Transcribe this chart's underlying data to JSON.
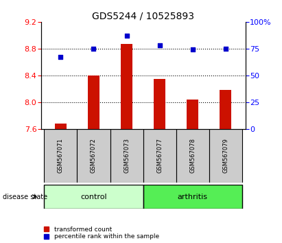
{
  "title": "GDS5244 / 10525893",
  "samples": [
    "GSM567071",
    "GSM567072",
    "GSM567073",
    "GSM567077",
    "GSM567078",
    "GSM567079"
  ],
  "red_values": [
    7.68,
    8.4,
    8.87,
    8.35,
    8.04,
    8.18
  ],
  "blue_values": [
    67,
    75,
    87,
    78,
    74,
    75
  ],
  "ylim_left": [
    7.6,
    9.2
  ],
  "ylim_right": [
    0,
    100
  ],
  "yticks_left": [
    7.6,
    8.0,
    8.4,
    8.8,
    9.2
  ],
  "yticks_right": [
    0,
    25,
    50,
    75,
    100
  ],
  "ytick_labels_right": [
    "0",
    "25",
    "50",
    "75",
    "100%"
  ],
  "control_color": "#ccffcc",
  "arthritis_color": "#55ee55",
  "bar_color": "#cc1100",
  "dot_color": "#0000cc",
  "label_box_color": "#cccccc",
  "legend_red_label": "transformed count",
  "legend_blue_label": "percentile rank within the sample",
  "disease_state_label": "disease state",
  "control_label": "control",
  "arthritis_label": "arthritis",
  "title_fontsize": 10,
  "tick_fontsize": 8,
  "bar_width": 0.35
}
